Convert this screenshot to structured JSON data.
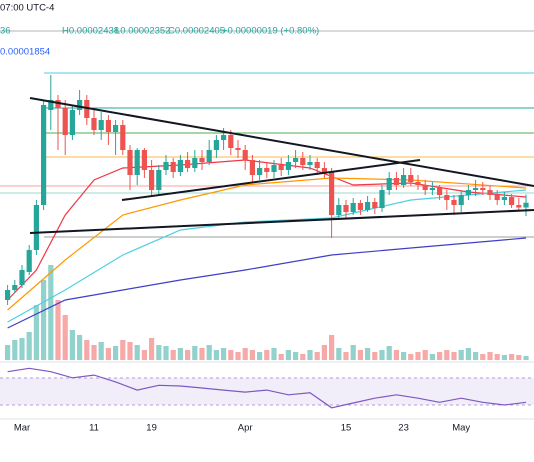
{
  "header": {
    "time": "07:00 UTC-4",
    "open": "36",
    "high": "H0.00002438",
    "low": "L0.00002352",
    "close": "C0.00002405",
    "change": "+0.00000019 (+0.80%)",
    "indicator": "0.00001854"
  },
  "chart_data": {
    "type": "candlestick",
    "categories": [
      null,
      null,
      "Mar",
      null,
      null,
      null,
      null,
      null,
      null,
      null,
      null,
      null,
      "11",
      null,
      null,
      null,
      null,
      null,
      null,
      null,
      "19",
      null,
      null,
      null,
      null,
      null,
      null,
      null,
      null,
      null,
      null,
      null,
      null,
      "Apr",
      null,
      null,
      null,
      null,
      null,
      null,
      null,
      null,
      null,
      null,
      null,
      null,
      null,
      "15",
      null,
      null,
      null,
      null,
      null,
      null,
      null,
      "23",
      null,
      null,
      null,
      null,
      null,
      null,
      null,
      "May",
      null,
      null,
      null,
      null,
      null,
      null,
      null,
      null,
      null
    ],
    "open": [
      2.016e-05,
      2.056e-05,
      2.076e-05,
      2.128e-05,
      2.216e-05,
      2.396e-05,
      2.776e-05,
      2.816e-05,
      2.784e-05,
      2.676e-05,
      2.776e-05,
      2.816e-05,
      2.744e-05,
      2.696e-05,
      2.736e-05,
      2.688e-05,
      2.716e-05,
      2.616e-05,
      2.516e-05,
      2.616e-05,
      2.536e-05,
      2.456e-05,
      2.536e-05,
      2.568e-05,
      2.528e-05,
      2.576e-05,
      2.544e-05,
      2.584e-05,
      2.568e-05,
      2.616e-05,
      2.656e-05,
      2.676e-05,
      2.624e-05,
      2.616e-05,
      2.576e-05,
      2.516e-05,
      2.544e-05,
      2.528e-05,
      2.556e-05,
      2.536e-05,
      2.568e-05,
      2.584e-05,
      2.556e-05,
      2.568e-05,
      2.544e-05,
      2.528e-05,
      2.356e-05,
      2.396e-05,
      2.368e-05,
      2.404e-05,
      2.376e-05,
      2.408e-05,
      2.384e-05,
      2.456e-05,
      2.504e-05,
      2.476e-05,
      2.516e-05,
      2.488e-05,
      2.476e-05,
      2.456e-05,
      2.464e-05,
      2.436e-05,
      2.416e-05,
      2.396e-05,
      2.436e-05,
      2.456e-05,
      2.464e-05,
      2.456e-05,
      2.436e-05,
      2.416e-05,
      2.428e-05,
      2.396e-05,
      2.386e-05
    ],
    "high": [
      2.076e-05,
      2.096e-05,
      2.156e-05,
      2.236e-05,
      2.416e-05,
      2.816e-05,
      2.916e-05,
      2.836e-05,
      2.816e-05,
      2.796e-05,
      2.856e-05,
      2.836e-05,
      2.776e-05,
      2.768e-05,
      2.756e-05,
      2.736e-05,
      2.736e-05,
      2.636e-05,
      2.624e-05,
      2.624e-05,
      2.576e-05,
      2.556e-05,
      2.596e-05,
      2.584e-05,
      2.596e-05,
      2.608e-05,
      2.616e-05,
      2.616e-05,
      2.656e-05,
      2.676e-05,
      2.704e-05,
      2.696e-05,
      2.656e-05,
      2.636e-05,
      2.596e-05,
      2.576e-05,
      2.568e-05,
      2.576e-05,
      2.584e-05,
      2.596e-05,
      2.616e-05,
      2.608e-05,
      2.596e-05,
      2.584e-05,
      2.568e-05,
      2.544e-05,
      2.424e-05,
      2.416e-05,
      2.424e-05,
      2.416e-05,
      2.432e-05,
      2.424e-05,
      2.476e-05,
      2.528e-05,
      2.528e-05,
      2.544e-05,
      2.544e-05,
      2.516e-05,
      2.496e-05,
      2.488e-05,
      2.476e-05,
      2.456e-05,
      2.436e-05,
      2.456e-05,
      2.476e-05,
      2.496e-05,
      2.488e-05,
      2.472e-05,
      2.456e-05,
      2.448e-05,
      2.44e-05,
      2.424e-05,
      2.438e-05
    ],
    "low": [
      1.996e-05,
      2.044e-05,
      2.064e-05,
      2.116e-05,
      2.196e-05,
      2.376e-05,
      2.696e-05,
      2.616e-05,
      2.596e-05,
      2.656e-05,
      2.756e-05,
      2.716e-05,
      2.676e-05,
      2.656e-05,
      2.636e-05,
      2.596e-05,
      2.596e-05,
      2.456e-05,
      2.476e-05,
      2.504e-05,
      2.436e-05,
      2.436e-05,
      2.516e-05,
      2.504e-05,
      2.512e-05,
      2.528e-05,
      2.528e-05,
      2.536e-05,
      2.556e-05,
      2.584e-05,
      2.616e-05,
      2.596e-05,
      2.584e-05,
      2.536e-05,
      2.488e-05,
      2.496e-05,
      2.504e-05,
      2.504e-05,
      2.512e-05,
      2.516e-05,
      2.544e-05,
      2.536e-05,
      2.536e-05,
      2.516e-05,
      2.504e-05,
      2.264e-05,
      2.344e-05,
      2.344e-05,
      2.356e-05,
      2.356e-05,
      2.368e-05,
      2.36e-05,
      2.368e-05,
      2.436e-05,
      2.456e-05,
      2.464e-05,
      2.472e-05,
      2.456e-05,
      2.436e-05,
      2.436e-05,
      2.416e-05,
      2.376e-05,
      2.356e-05,
      2.368e-05,
      2.416e-05,
      2.432e-05,
      2.436e-05,
      2.416e-05,
      2.396e-05,
      2.396e-05,
      2.384e-05,
      2.376e-05,
      2.352e-05
    ],
    "close": [
      2.056e-05,
      2.076e-05,
      2.136e-05,
      2.216e-05,
      2.396e-05,
      2.796e-05,
      2.816e-05,
      2.784e-05,
      2.676e-05,
      2.776e-05,
      2.816e-05,
      2.744e-05,
      2.696e-05,
      2.736e-05,
      2.688e-05,
      2.716e-05,
      2.616e-05,
      2.516e-05,
      2.616e-05,
      2.536e-05,
      2.456e-05,
      2.536e-05,
      2.568e-05,
      2.528e-05,
      2.576e-05,
      2.544e-05,
      2.584e-05,
      2.568e-05,
      2.616e-05,
      2.656e-05,
      2.676e-05,
      2.624e-05,
      2.616e-05,
      2.576e-05,
      2.516e-05,
      2.544e-05,
      2.528e-05,
      2.556e-05,
      2.536e-05,
      2.568e-05,
      2.584e-05,
      2.556e-05,
      2.568e-05,
      2.544e-05,
      2.528e-05,
      2.356e-05,
      2.396e-05,
      2.368e-05,
      2.404e-05,
      2.376e-05,
      2.408e-05,
      2.384e-05,
      2.456e-05,
      2.504e-05,
      2.476e-05,
      2.516e-05,
      2.488e-05,
      2.476e-05,
      2.456e-05,
      2.464e-05,
      2.436e-05,
      2.416e-05,
      2.396e-05,
      2.436e-05,
      2.456e-05,
      2.464e-05,
      2.456e-05,
      2.436e-05,
      2.416e-05,
      2.428e-05,
      2.396e-05,
      2.386e-05,
      2.405e-05
    ],
    "colors": {
      "up": "#26a69a",
      "down": "#ef5350"
    },
    "ylim": [
      1.9e-05,
      3e-05
    ],
    "volume": {
      "ylim": [
        0,
        100
      ],
      "values": [
        15,
        20,
        22,
        28,
        55,
        80,
        95,
        60,
        45,
        30,
        25,
        20,
        15,
        18,
        12,
        14,
        20,
        18,
        15,
        10,
        22,
        15,
        14,
        10,
        12,
        10,
        14,
        12,
        15,
        10,
        12,
        10,
        8,
        12,
        10,
        8,
        10,
        12,
        6,
        10,
        8,
        6,
        10,
        8,
        15,
        25,
        12,
        8,
        15,
        10,
        12,
        8,
        10,
        14,
        10,
        8,
        6,
        8,
        10,
        6,
        8,
        10,
        8,
        10,
        12,
        8,
        6,
        8,
        6,
        5,
        6,
        5,
        4
      ]
    },
    "moving_averages": [
      {
        "color": "#f23645",
        "x": [
          0,
          4,
          8,
          12,
          16,
          24,
          33,
          42,
          48,
          56,
          64,
          72
        ],
        "values": [
          2.016e-05,
          2.136e-05,
          2.356e-05,
          2.496e-05,
          2.544e-05,
          2.556e-05,
          2.576e-05,
          2.544e-05,
          2.476e-05,
          2.484e-05,
          2.448e-05,
          2.428e-05
        ]
      },
      {
        "color": "#ff9800",
        "x": [
          0,
          8,
          16,
          24,
          33,
          45,
          56,
          72
        ],
        "values": [
          1.976e-05,
          2.176e-05,
          2.356e-05,
          2.416e-05,
          2.476e-05,
          2.504e-05,
          2.496e-05,
          2.464e-05
        ]
      },
      {
        "color": "#4dd0e1",
        "x": [
          0,
          8,
          16,
          24,
          33,
          45,
          56,
          72
        ],
        "values": [
          1.928e-05,
          2.056e-05,
          2.196e-05,
          2.296e-05,
          2.328e-05,
          2.344e-05,
          2.416e-05,
          2.456e-05
        ]
      },
      {
        "color": "#3f3fc6",
        "x": [
          0,
          8,
          16,
          24,
          33,
          45,
          56,
          72
        ],
        "values": [
          1.904e-05,
          2.016e-05,
          2.056e-05,
          2.096e-05,
          2.136e-05,
          2.196e-05,
          2.224e-05,
          2.264e-05
        ]
      }
    ],
    "rsi": {
      "color": "#7e57c2",
      "ylim": [
        0,
        100
      ],
      "x": [
        0,
        3,
        6,
        9,
        12,
        15,
        18,
        21,
        24,
        27,
        30,
        33,
        36,
        39,
        42,
        45,
        48,
        51,
        54,
        57,
        60,
        63,
        66,
        69,
        72
      ],
      "values": [
        71,
        76,
        71,
        62,
        66,
        56,
        44,
        51,
        50,
        47,
        44,
        41,
        44,
        37,
        40,
        18,
        25,
        32,
        37,
        32,
        26,
        32,
        26,
        22,
        26
      ]
    }
  }
}
